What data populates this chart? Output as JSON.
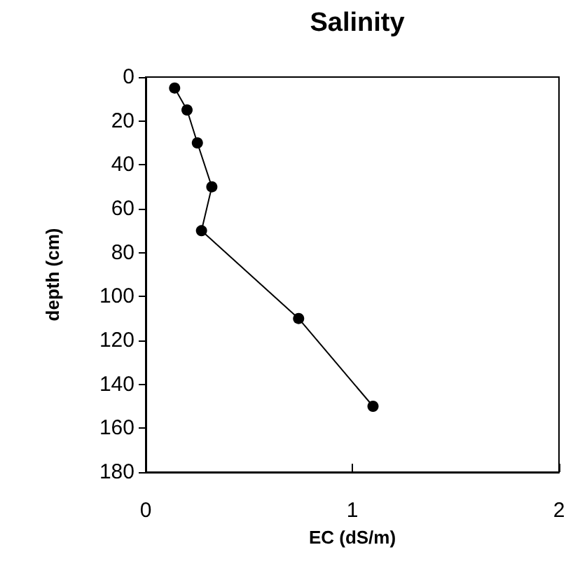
{
  "chart_data": {
    "type": "line",
    "title": "Salinity",
    "xlabel": "EC (dS/m)",
    "ylabel": "depth (cm)",
    "x": [
      0.14,
      0.2,
      0.25,
      0.32,
      0.27,
      0.74,
      1.1
    ],
    "values": [
      5,
      15,
      30,
      50,
      70,
      110,
      150
    ],
    "color": "#000000",
    "xlim": [
      0,
      2
    ],
    "xticks": [
      0,
      1,
      2
    ],
    "ylim": [
      180,
      0
    ],
    "yticks": [
      0,
      20,
      40,
      60,
      80,
      100,
      120,
      140,
      160,
      180
    ],
    "grid": false,
    "marker": "circle",
    "line_style": "solid"
  }
}
